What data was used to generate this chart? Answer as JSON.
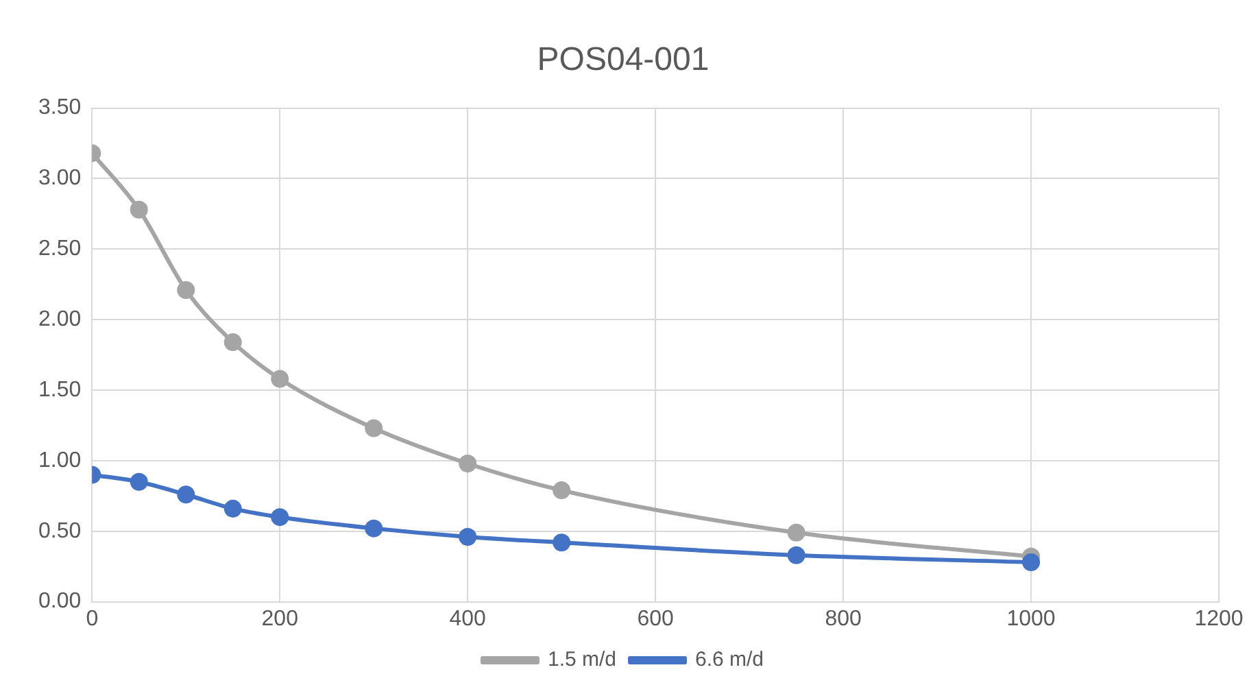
{
  "chart_data": {
    "type": "line",
    "title": "POS04-001",
    "x": [
      0,
      50,
      100,
      150,
      200,
      300,
      400,
      500,
      750,
      1000
    ],
    "series": [
      {
        "name": "1.5 m/d",
        "color": "#a5a5a5",
        "values": [
          3.18,
          2.78,
          2.21,
          1.84,
          1.58,
          1.23,
          0.98,
          0.79,
          0.49,
          0.32
        ]
      },
      {
        "name": "6.6 m/d",
        "color": "#4472c4",
        "values": [
          0.9,
          0.85,
          0.76,
          0.66,
          0.6,
          0.52,
          0.46,
          0.42,
          0.33,
          0.28
        ]
      }
    ],
    "xlim": [
      0,
      1200
    ],
    "xticks": [
      0,
      200,
      400,
      600,
      800,
      1000,
      1200
    ],
    "ylim": [
      0,
      3.5
    ],
    "yticks": [
      {
        "value": 0,
        "label": "0.00"
      },
      {
        "value": 0.5,
        "label": "0.50"
      },
      {
        "value": 1,
        "label": "1.00"
      },
      {
        "value": 1.5,
        "label": "1.50"
      },
      {
        "value": 2,
        "label": "2.00"
      },
      {
        "value": 2.5,
        "label": "2.50"
      },
      {
        "value": 3,
        "label": "3.00"
      },
      {
        "value": 3.5,
        "label": "3.50"
      }
    ],
    "grid": true,
    "legend": "bottom",
    "marker": "circle",
    "line_style": "solid"
  }
}
